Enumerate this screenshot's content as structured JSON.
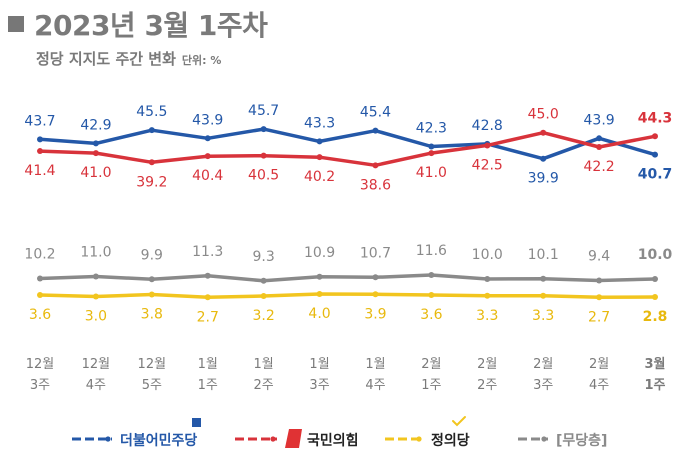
{
  "header": {
    "title": "2023년 3월 1주차",
    "subtitle": "정당 지지도 주간 변화",
    "unit": "단위: %"
  },
  "colors": {
    "title": "#7a7a7a",
    "axis_label": "#7a7a7a"
  },
  "chart_data": {
    "type": "line",
    "title": "2023년 3월 1주차",
    "subtitle": "정당 지지도 주간 변화",
    "unit": "%",
    "categories": [
      [
        "12월",
        "3주"
      ],
      [
        "12월",
        "4주"
      ],
      [
        "12월",
        "5주"
      ],
      [
        "1월",
        "1주"
      ],
      [
        "1월",
        "2주"
      ],
      [
        "1월",
        "3주"
      ],
      [
        "1월",
        "4주"
      ],
      [
        "2월",
        "1주"
      ],
      [
        "2월",
        "2주"
      ],
      [
        "2월",
        "3주"
      ],
      [
        "2월",
        "4주"
      ],
      [
        "3월",
        "1주"
      ]
    ],
    "grid": false,
    "legend_position": "bottom",
    "series": [
      {
        "name": "더불어민주당",
        "color": "#2458a8",
        "values": [
          43.7,
          42.9,
          45.5,
          43.9,
          45.7,
          43.3,
          45.4,
          42.3,
          42.8,
          39.9,
          43.9,
          40.7
        ]
      },
      {
        "name": "국민의힘",
        "color": "#d8333b",
        "values": [
          41.4,
          41.0,
          39.2,
          40.4,
          40.5,
          40.2,
          38.6,
          41.0,
          42.5,
          45.0,
          42.2,
          44.3
        ]
      },
      {
        "name": "정의당",
        "color": "#f2c51f",
        "values": [
          3.6,
          3.0,
          3.8,
          2.7,
          3.2,
          4.0,
          3.9,
          3.6,
          3.3,
          3.3,
          2.7,
          2.8
        ]
      },
      {
        "name": "[무당층]",
        "color": "#8a8a8a",
        "values": [
          10.2,
          11.0,
          9.9,
          11.3,
          9.3,
          10.9,
          10.7,
          11.6,
          10.0,
          10.1,
          9.4,
          10.0
        ]
      }
    ]
  }
}
